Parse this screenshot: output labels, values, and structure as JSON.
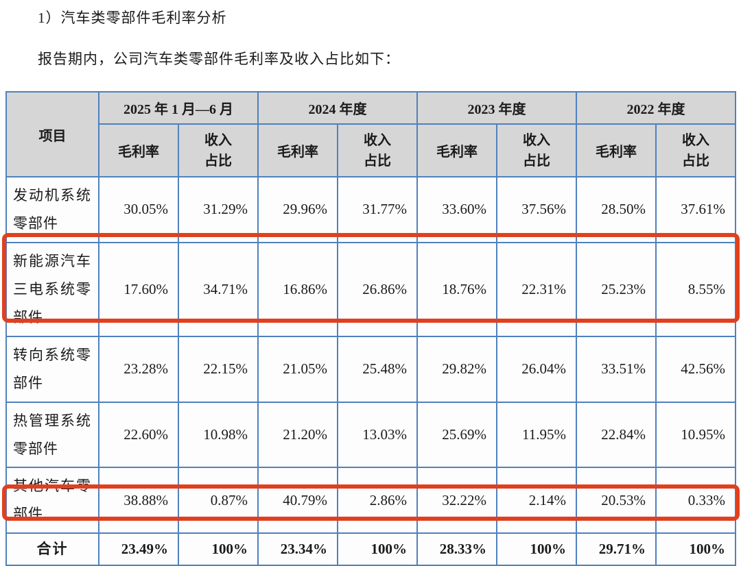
{
  "page": {
    "title": "1）汽车类零部件毛利率分析",
    "subtitle": "报告期内，公司汽车类零部件毛利率及收入占比如下："
  },
  "table": {
    "item_header": "项目",
    "periods": [
      {
        "label": "2025 年 1 月—6 月"
      },
      {
        "label": "2024 年度"
      },
      {
        "label": "2023 年度"
      },
      {
        "label": "2022 年度"
      }
    ],
    "sub_headers": {
      "gross_margin": "毛利率",
      "revenue_share": "收入\n占比"
    },
    "rows": [
      {
        "label": "发动机系统零部件",
        "highlighted": false,
        "values": [
          "30.05%",
          "31.29%",
          "29.96%",
          "31.77%",
          "33.60%",
          "37.56%",
          "28.50%",
          "37.61%"
        ]
      },
      {
        "label": "新能源汽车三电系统零部件",
        "highlighted": true,
        "values": [
          "17.60%",
          "34.71%",
          "16.86%",
          "26.86%",
          "18.76%",
          "22.31%",
          "25.23%",
          "8.55%"
        ]
      },
      {
        "label": "转向系统零部件",
        "highlighted": false,
        "values": [
          "23.28%",
          "22.15%",
          "21.05%",
          "25.48%",
          "29.82%",
          "26.04%",
          "33.51%",
          "42.56%"
        ]
      },
      {
        "label": "热管理系统零部件",
        "highlighted": false,
        "values": [
          "22.60%",
          "10.98%",
          "21.20%",
          "13.03%",
          "25.69%",
          "11.95%",
          "22.84%",
          "10.95%"
        ]
      },
      {
        "label": "其他汽车零部件",
        "highlighted": false,
        "values": [
          "38.88%",
          "0.87%",
          "40.79%",
          "2.86%",
          "32.22%",
          "2.14%",
          "20.53%",
          "0.33%"
        ]
      }
    ],
    "total_row": {
      "label": "合计",
      "highlighted": true,
      "values": [
        "23.49%",
        "100%",
        "23.34%",
        "100%",
        "28.33%",
        "100%",
        "29.71%",
        "100%"
      ]
    }
  },
  "colors": {
    "table_border_blue": "#4f81bd",
    "header_background_gray": "#d6d6d6",
    "highlight_box_red": "#e0401f",
    "text": "#1a1a1a"
  }
}
